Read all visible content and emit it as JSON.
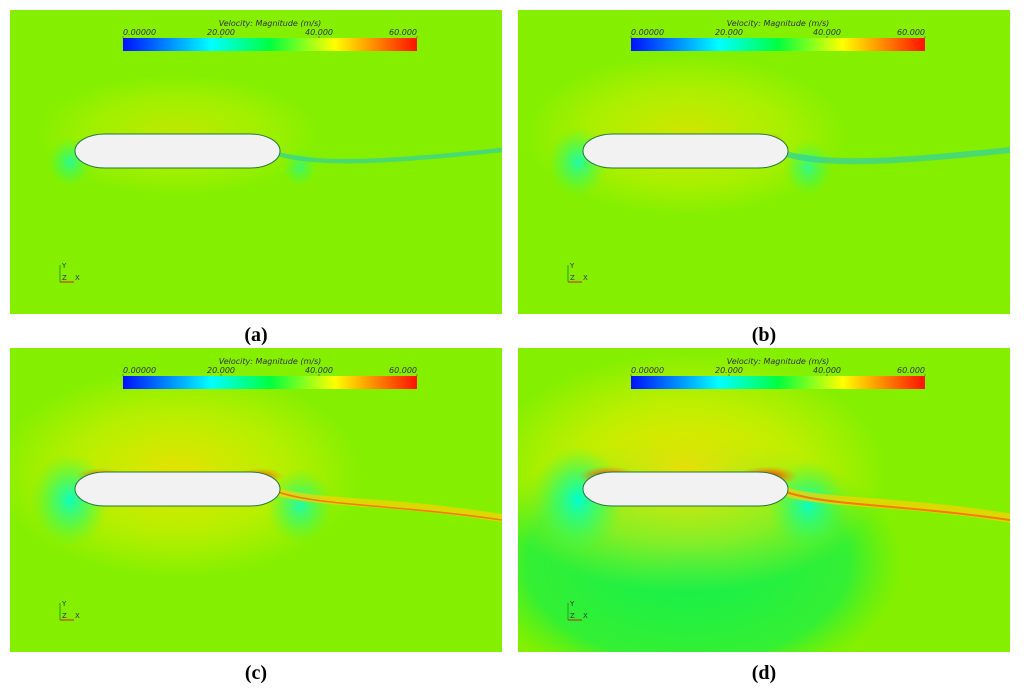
{
  "colorbar": {
    "title": "Velocity: Magnitude (m/s)",
    "ticks": [
      {
        "value": 0,
        "label": "0.00000"
      },
      {
        "value": 20,
        "label": "20.000"
      },
      {
        "value": 40,
        "label": "40.000"
      },
      {
        "value": 60,
        "label": "60.000"
      }
    ],
    "range": [
      0,
      60
    ]
  },
  "triad": {
    "y": "Y",
    "z": "Z",
    "x": "X"
  },
  "panels": [
    {
      "label": "(a)"
    },
    {
      "label": "(b)"
    },
    {
      "label": "(c)"
    },
    {
      "label": "(d)"
    }
  ]
}
